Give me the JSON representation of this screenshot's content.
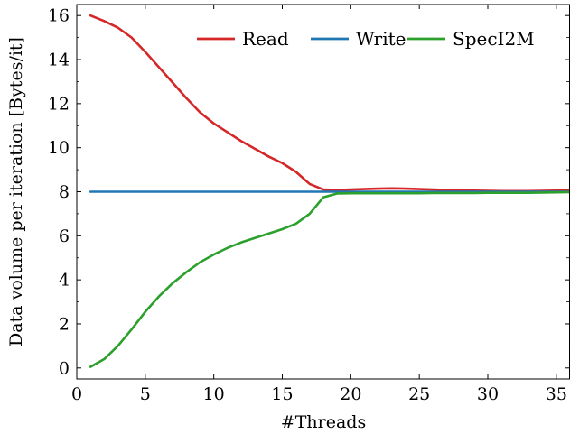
{
  "chart_data": {
    "type": "line",
    "title": "",
    "xlabel": "#Threads",
    "ylabel": "Data volume per iteration [Bytes/it]",
    "xlim": [
      0,
      36
    ],
    "ylim": [
      -0.5,
      16.5
    ],
    "xticks": [
      0,
      5,
      10,
      15,
      20,
      25,
      30,
      35
    ],
    "yticks": [
      0,
      2,
      4,
      6,
      8,
      10,
      12,
      14,
      16
    ],
    "grid": false,
    "legend_position": "top-right",
    "legend_orientation": "horizontal",
    "x": [
      1,
      2,
      3,
      4,
      5,
      6,
      7,
      8,
      9,
      10,
      11,
      12,
      13,
      14,
      15,
      16,
      17,
      18,
      19,
      20,
      21,
      22,
      23,
      24,
      25,
      26,
      27,
      28,
      29,
      30,
      31,
      32,
      33,
      34,
      35,
      36
    ],
    "series": [
      {
        "name": "Read",
        "color": "#d62728",
        "values": [
          16.0,
          15.75,
          15.45,
          15.0,
          14.35,
          13.65,
          12.95,
          12.25,
          11.6,
          11.1,
          10.7,
          10.3,
          9.95,
          9.6,
          9.3,
          8.9,
          8.35,
          8.1,
          8.08,
          8.1,
          8.12,
          8.14,
          8.15,
          8.14,
          8.12,
          8.1,
          8.08,
          8.06,
          8.05,
          8.04,
          8.03,
          8.03,
          8.03,
          8.04,
          8.05,
          8.06
        ]
      },
      {
        "name": "Write",
        "color": "#1f77b4",
        "values": [
          8.0,
          8.0,
          8.0,
          8.0,
          8.0,
          8.0,
          8.0,
          8.0,
          8.0,
          8.0,
          8.0,
          8.0,
          8.0,
          8.0,
          8.0,
          8.0,
          8.0,
          8.0,
          8.0,
          8.0,
          8.0,
          8.0,
          8.0,
          8.0,
          8.0,
          8.0,
          8.0,
          8.0,
          8.0,
          8.0,
          8.0,
          8.0,
          8.0,
          8.0,
          8.0,
          8.0
        ]
      },
      {
        "name": "SpecI2M",
        "color": "#2ca02c",
        "values": [
          0.05,
          0.4,
          1.0,
          1.75,
          2.55,
          3.25,
          3.85,
          4.35,
          4.8,
          5.15,
          5.45,
          5.7,
          5.9,
          6.1,
          6.3,
          6.55,
          7.0,
          7.75,
          7.92,
          7.93,
          7.93,
          7.93,
          7.93,
          7.93,
          7.93,
          7.94,
          7.94,
          7.94,
          7.94,
          7.95,
          7.95,
          7.95,
          7.95,
          7.96,
          7.97,
          7.98
        ]
      }
    ]
  }
}
